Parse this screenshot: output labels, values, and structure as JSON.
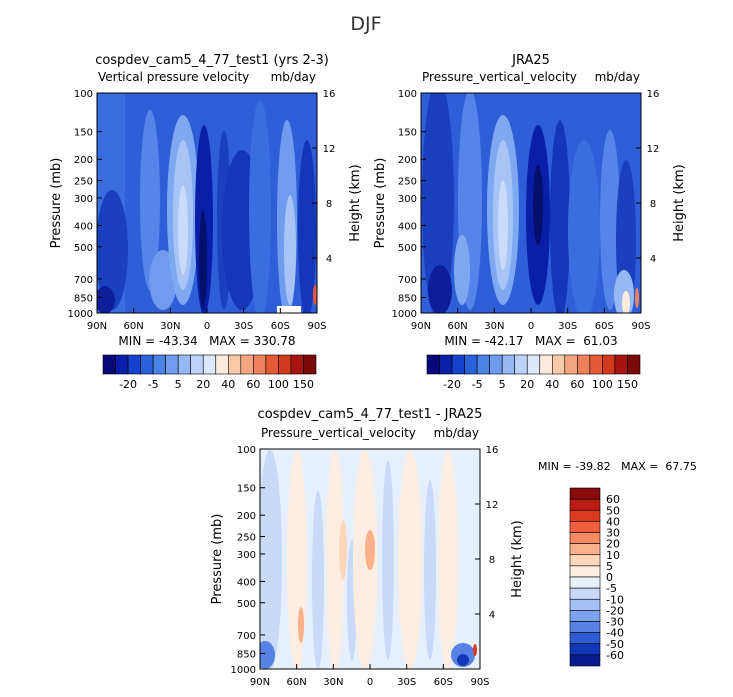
{
  "page": {
    "title": "DJF"
  },
  "panels": [
    {
      "id": "model",
      "title": "cospdev_cam5_4_77_test1 (yrs 2-3)",
      "subtitle_left": "Vertical pressure velocity",
      "subtitle_right": "mb/day",
      "stats": "MIN = -43.34   MAX = 330.78",
      "ylabel": "Pressure (mb)",
      "ylabel_right": "Height (km)",
      "pressure_ticks": [
        "100",
        "150",
        "200",
        "250",
        "300",
        "400",
        "500",
        "700",
        "850",
        "1000"
      ],
      "height_ticks": [
        "4",
        "8",
        "12",
        "16"
      ],
      "lat_ticks": [
        "90N",
        "60N",
        "30N",
        "0",
        "30S",
        "60S",
        "90S"
      ]
    },
    {
      "id": "obs",
      "title": "JRA25",
      "subtitle_left": "Pressure_vertical_velocity",
      "subtitle_right": "mb/day",
      "stats": "MIN = -42.17   MAX =  61.03",
      "ylabel": "Pressure (mb)",
      "ylabel_right": "Height (km)",
      "pressure_ticks": [
        "100",
        "150",
        "200",
        "250",
        "300",
        "400",
        "500",
        "700",
        "850",
        "1000"
      ],
      "height_ticks": [
        "4",
        "8",
        "12",
        "16"
      ],
      "lat_ticks": [
        "90N",
        "60N",
        "30N",
        "0",
        "30S",
        "60S",
        "90S"
      ]
    },
    {
      "id": "diff",
      "title": "cospdev_cam5_4_77_test1 - JRA25",
      "subtitle_left": "Pressure_vertical_velocity",
      "subtitle_right": "mb/day",
      "stats": "MIN = -39.82   MAX =  67.75",
      "ylabel": "Pressure (mb)",
      "ylabel_right": "Height (km)",
      "pressure_ticks": [
        "100",
        "150",
        "200",
        "250",
        "300",
        "400",
        "500",
        "700",
        "850",
        "1000"
      ],
      "height_ticks": [
        "4",
        "8",
        "12",
        "16"
      ],
      "lat_ticks": [
        "90N",
        "60N",
        "30N",
        "0",
        "30S",
        "60S",
        "90S"
      ]
    }
  ],
  "colorbars": {
    "field": {
      "labels": [
        "-20",
        "-5",
        "5",
        "20",
        "40",
        "60",
        "100",
        "150"
      ],
      "colors": [
        "#08087a",
        "#0a1fa8",
        "#1442cc",
        "#2a62dc",
        "#4a82e6",
        "#6f9cee",
        "#96b8f4",
        "#bcd2f8",
        "#dce8fc",
        "#fdeadd",
        "#f9c9a9",
        "#f4a683",
        "#ee815c",
        "#e55a36",
        "#d23a1e",
        "#a81410",
        "#7a0a08"
      ]
    },
    "diff": {
      "labels": [
        "60",
        "50",
        "40",
        "30",
        "20",
        "10",
        "5",
        "0",
        "-5",
        "-10",
        "-20",
        "-30",
        "-40",
        "-50",
        "-60"
      ],
      "colors": [
        "#8a0c0c",
        "#b81c12",
        "#dc3a1e",
        "#f0603e",
        "#f78a63",
        "#fbb08c",
        "#fdd6bc",
        "#fdece0",
        "#e6effc",
        "#c8daf8",
        "#a4c0f4",
        "#7ea2ee",
        "#5582e4",
        "#2e5ad4",
        "#1238b8",
        "#081c8e"
      ]
    }
  },
  "chart_data": [
    {
      "type": "heatmap",
      "title": "cospdev_cam5_4_77_test1 (yrs 2-3)",
      "subtitle": "Vertical pressure velocity  mb/day",
      "xlabel": "",
      "ylabel": "Pressure (mb)",
      "ylabel_right": "Height (km)",
      "x": [
        "90N",
        "60N",
        "30N",
        "0",
        "30S",
        "60S",
        "90S"
      ],
      "y": [
        100,
        150,
        200,
        250,
        300,
        400,
        500,
        700,
        850,
        1000
      ],
      "yscale": "log",
      "y_inverted": true,
      "min": -43.34,
      "max": 330.78,
      "units": "mb/day"
    },
    {
      "type": "heatmap",
      "title": "JRA25",
      "subtitle": "Pressure_vertical_velocity  mb/day",
      "xlabel": "",
      "ylabel": "Pressure (mb)",
      "ylabel_right": "Height (km)",
      "x": [
        "90N",
        "60N",
        "30N",
        "0",
        "30S",
        "60S",
        "90S"
      ],
      "y": [
        100,
        150,
        200,
        250,
        300,
        400,
        500,
        700,
        850,
        1000
      ],
      "yscale": "log",
      "y_inverted": true,
      "min": -42.17,
      "max": 61.03,
      "units": "mb/day"
    },
    {
      "type": "heatmap",
      "title": "cospdev_cam5_4_77_test1 - JRA25",
      "subtitle": "Pressure_vertical_velocity  mb/day",
      "xlabel": "",
      "ylabel": "Pressure (mb)",
      "ylabel_right": "Height (km)",
      "x": [
        "90N",
        "60N",
        "30N",
        "0",
        "30S",
        "60S",
        "90S"
      ],
      "y": [
        100,
        150,
        200,
        250,
        300,
        400,
        500,
        700,
        850,
        1000
      ],
      "yscale": "log",
      "y_inverted": true,
      "min": -39.82,
      "max": 67.75,
      "units": "mb/day"
    }
  ]
}
